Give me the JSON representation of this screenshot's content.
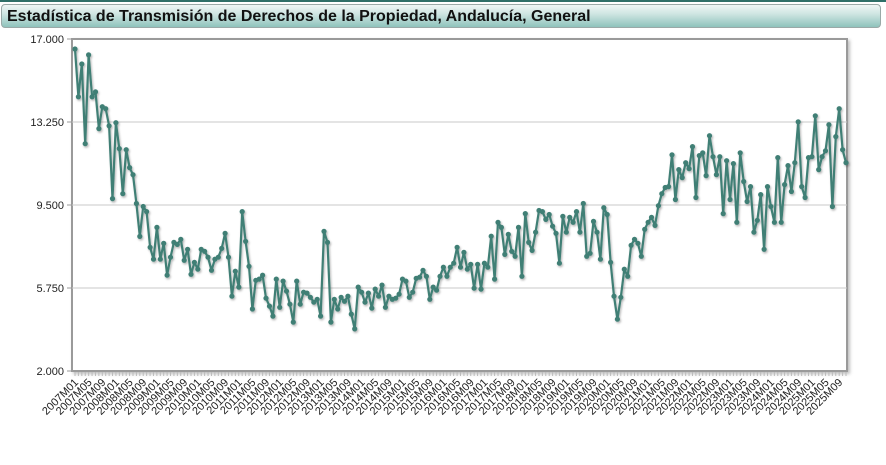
{
  "header": {
    "title": "Estadística de Transmisión de Derechos de la Propiedad, Andalucía, General"
  },
  "colors": {
    "line": "#3f7f75",
    "grid": "#c8c8c8",
    "axis": "#9a9a9a",
    "header_dark": "#2f6f68"
  },
  "chart_data": {
    "type": "line",
    "title": "Estadística de Transmisión de Derechos de la Propiedad, Andalucía, General",
    "xlabel": "",
    "ylabel": "",
    "ylim": [
      2000,
      17000
    ],
    "yticks": [
      2000,
      5750,
      9500,
      13250,
      17000
    ],
    "ytick_labels": [
      "2.000",
      "5.750",
      "9.500",
      "13.250",
      "17.000"
    ],
    "grid": true,
    "legend": null,
    "x_start": "2007M01",
    "x_end": "2025M09",
    "x_tick_step_months": 4,
    "x_tick_labels": [
      "2007M01",
      "2007M05",
      "2007M09",
      "2008M01",
      "2008M05",
      "2008M09",
      "2009M01",
      "2009M05",
      "2009M09",
      "2010M01",
      "2010M05",
      "2010M09",
      "2011M01",
      "2011M05",
      "2011M09",
      "2012M01",
      "2012M05",
      "2012M09",
      "2013M01",
      "2013M05",
      "2013M09",
      "2014M01",
      "2014M05",
      "2014M09",
      "2015M01",
      "2015M05",
      "2015M09",
      "2016M01",
      "2016M05",
      "2016M09",
      "2017M01",
      "2017M05",
      "2017M09",
      "2018M01",
      "2018M05",
      "2018M09",
      "2019M01",
      "2019M05",
      "2019M09",
      "2020M01",
      "2020M05",
      "2020M09",
      "2021M01",
      "2021M05",
      "2021M09",
      "2022M01",
      "2022M05",
      "2022M09",
      "2023M01",
      "2023M05",
      "2023M09",
      "2024M01",
      "2024M05",
      "2024M09",
      "2025M01",
      "2025M05",
      "2025M09"
    ],
    "series": [
      {
        "name": "General",
        "values": [
          16550,
          14390,
          15870,
          12270,
          16280,
          14390,
          14610,
          12950,
          13940,
          13850,
          13080,
          9790,
          13220,
          12050,
          10010,
          12000,
          11190,
          10870,
          9570,
          8080,
          9430,
          9200,
          7590,
          7050,
          8490,
          7050,
          7770,
          6330,
          7140,
          7810,
          7720,
          7950,
          7000,
          7500,
          6370,
          6910,
          6600,
          7500,
          7410,
          7140,
          6550,
          7050,
          7140,
          7540,
          8220,
          7140,
          5380,
          6510,
          5790,
          9200,
          7860,
          6730,
          4800,
          6100,
          6150,
          6330,
          5290,
          4930,
          4480,
          6150,
          4880,
          6060,
          5610,
          5020,
          4210,
          6060,
          5020,
          5560,
          5520,
          5330,
          5110,
          5240,
          4480,
          8310,
          7810,
          4210,
          5240,
          4800,
          5330,
          5150,
          5380,
          4570,
          3900,
          5790,
          5560,
          5110,
          5520,
          4840,
          5700,
          5380,
          5880,
          4880,
          5380,
          5240,
          5290,
          5470,
          6150,
          6060,
          5330,
          5560,
          6190,
          6240,
          6550,
          6280,
          5240,
          5790,
          5650,
          6280,
          6690,
          6280,
          6690,
          6870,
          7590,
          6690,
          7360,
          6600,
          6820,
          5740,
          6820,
          5700,
          6870,
          6690,
          8090,
          6150,
          8720,
          8490,
          7270,
          8170,
          7410,
          7180,
          8490,
          6280,
          9110,
          7810,
          7450,
          8270,
          9250,
          9200,
          8850,
          9070,
          8540,
          8220,
          6870,
          8990,
          8270,
          8940,
          8720,
          9200,
          8270,
          9570,
          7180,
          7320,
          8760,
          8270,
          7050,
          9380,
          9070,
          6910,
          5380,
          4340,
          5330,
          6600,
          6280,
          7680,
          7950,
          7770,
          7180,
          8400,
          8720,
          8940,
          8580,
          9470,
          10010,
          10290,
          10330,
          11770,
          9750,
          11100,
          10740,
          11410,
          11140,
          12140,
          9840,
          11730,
          11860,
          10830,
          12630,
          11680,
          10870,
          11680,
          9110,
          11500,
          9750,
          11370,
          8720,
          11860,
          10560,
          9660,
          10330,
          8270,
          8810,
          9970,
          7500,
          10330,
          9430,
          8720,
          11640,
          8720,
          10420,
          11280,
          10110,
          11410,
          13260,
          10330,
          9840,
          11640,
          11680,
          13530,
          11100,
          11680,
          11950,
          13130,
          9430,
          12590,
          13850,
          12000,
          11410
        ]
      }
    ]
  }
}
